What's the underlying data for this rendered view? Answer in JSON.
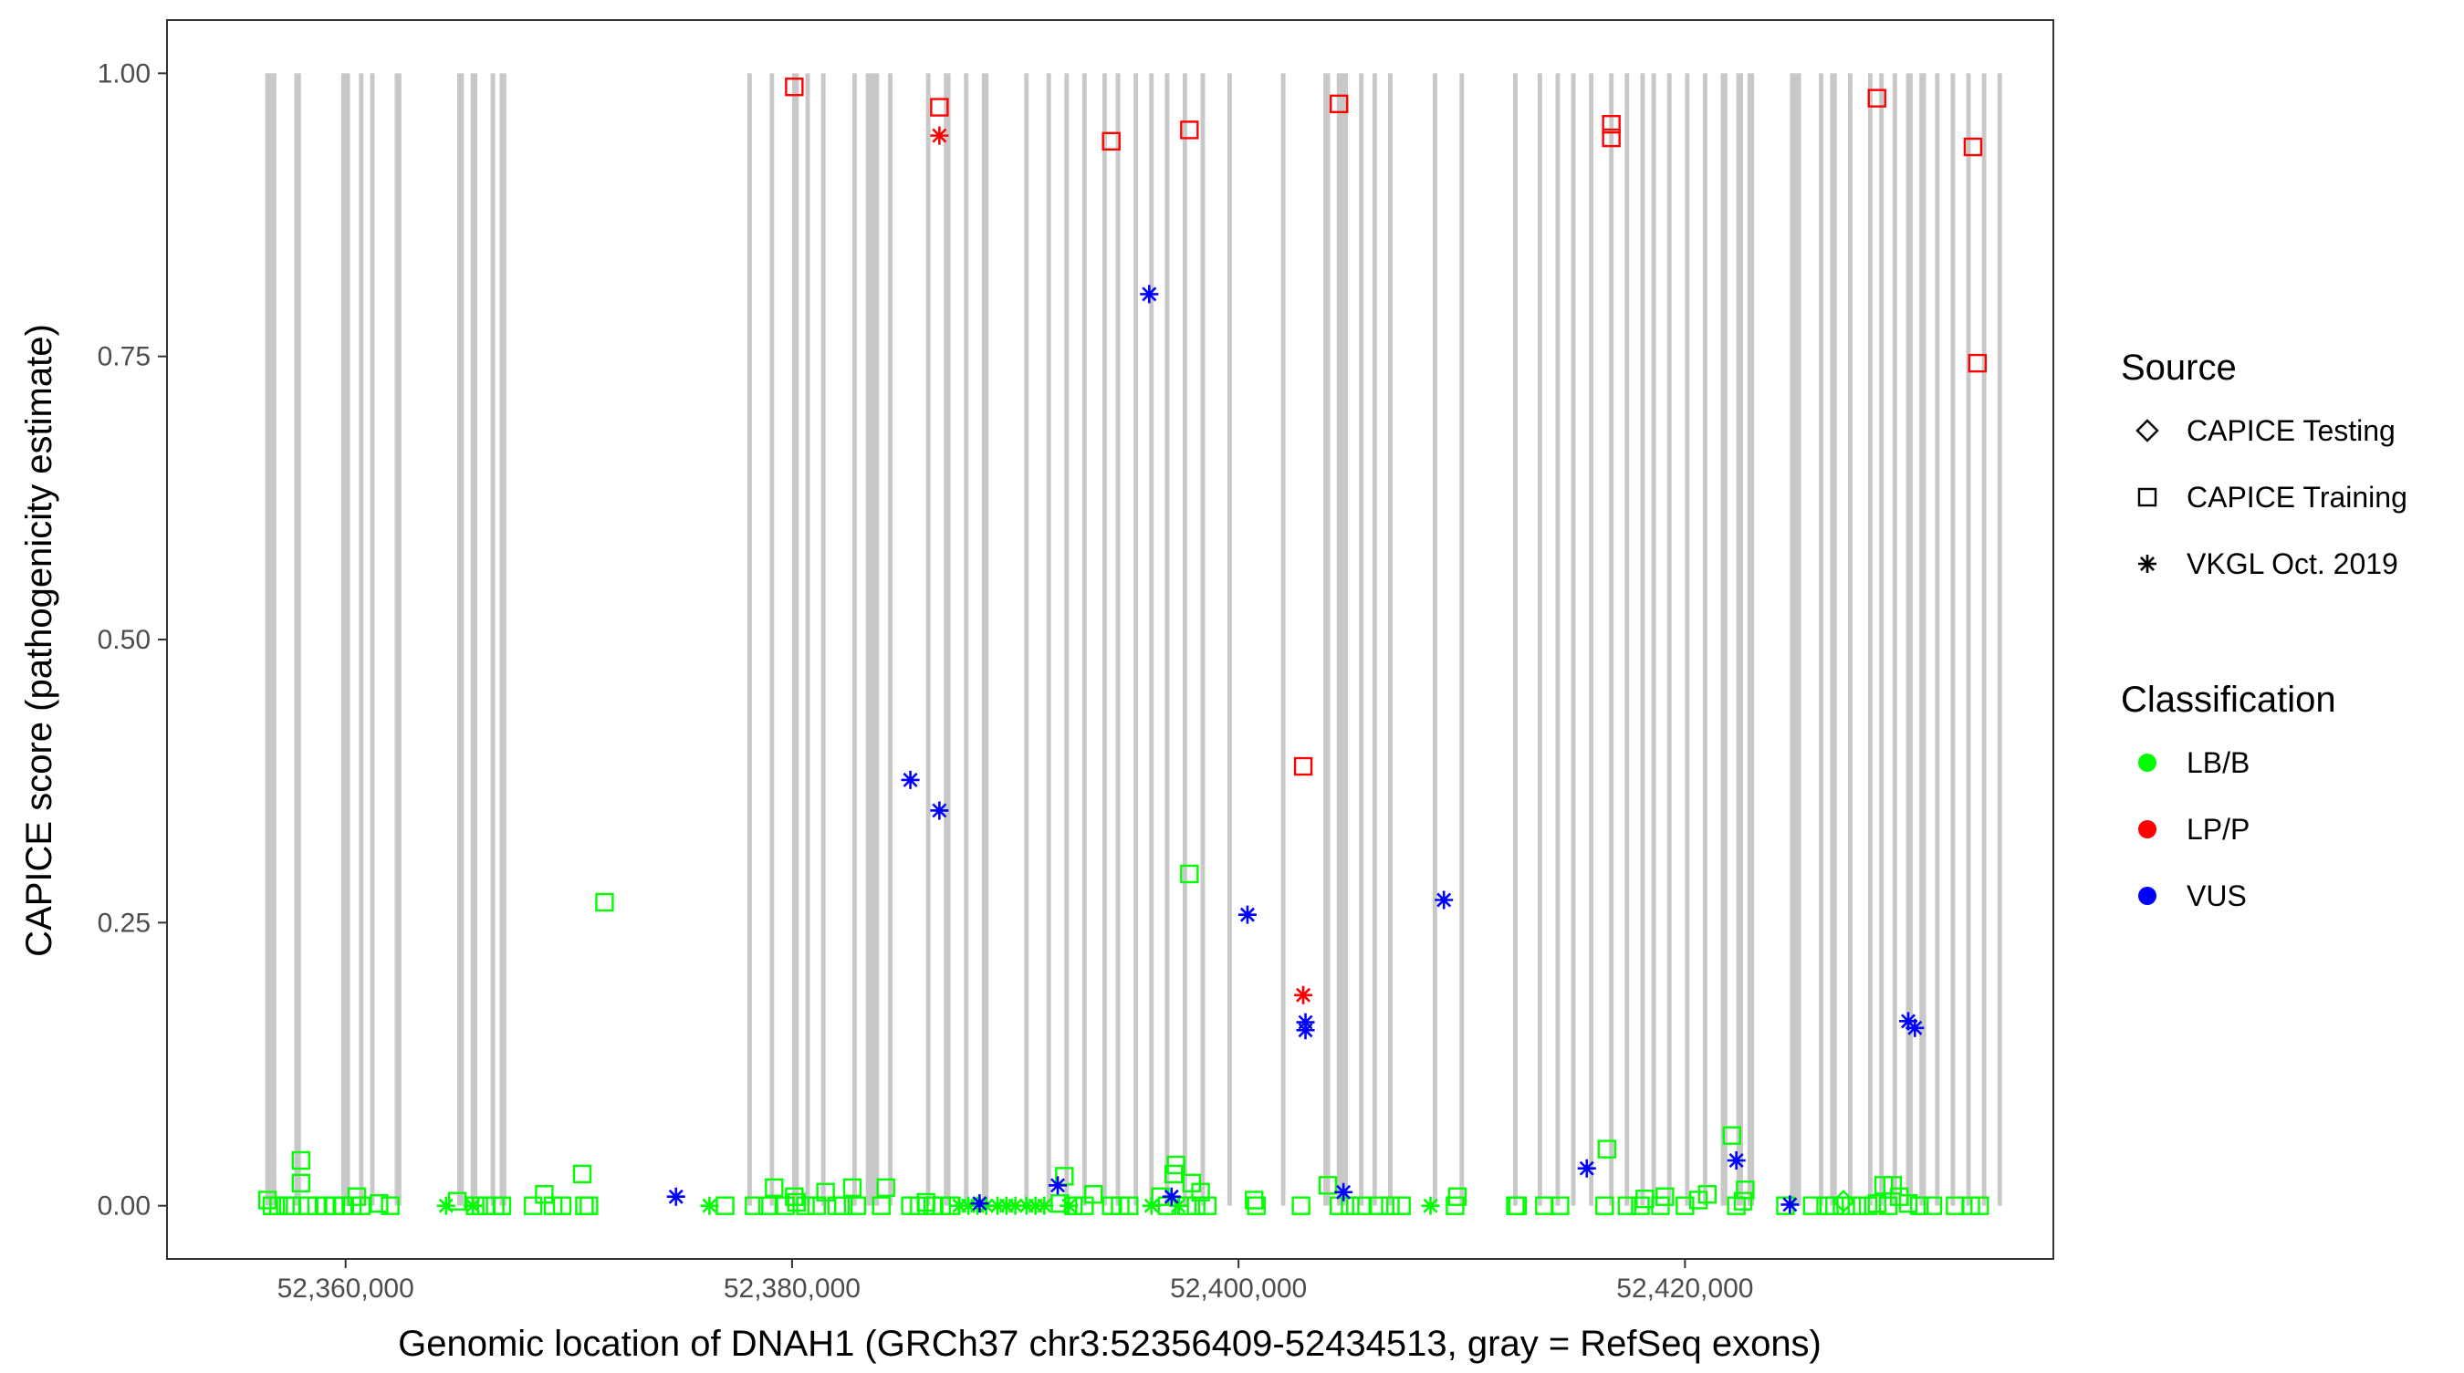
{
  "chart_data": {
    "type": "scatter",
    "xlabel": "Genomic location of DNAH1 (GRCh37 chr3:52356409-52434513, gray = RefSeq exons)",
    "ylabel": "CAPICE score (pathogenicity estimate)",
    "xlim": [
      52352000,
      52436500
    ],
    "ylim": [
      -0.047,
      1.047
    ],
    "x_ticks": [
      52360000,
      52380000,
      52400000,
      52420000
    ],
    "x_tick_labels": [
      "52,360,000",
      "52,380,000",
      "52,400,000",
      "52,420,000"
    ],
    "y_ticks": [
      0,
      0.25,
      0.5,
      0.75,
      1.0
    ],
    "y_tick_labels": [
      "0.00",
      "0.25",
      "0.50",
      "0.75",
      "1.00"
    ],
    "grid": false,
    "exon_color": "#c8c8c8",
    "exons": [
      [
        52356400,
        52356900
      ],
      [
        52357700,
        52358000
      ],
      [
        52359800,
        52360200
      ],
      [
        52360600,
        52360800
      ],
      [
        52361100,
        52361300
      ],
      [
        52362200,
        52362500
      ],
      [
        52365000,
        52365300
      ],
      [
        52365600,
        52365900
      ],
      [
        52366500,
        52366700
      ],
      [
        52366900,
        52367200
      ],
      [
        52378000,
        52378200
      ],
      [
        52379000,
        52379200
      ],
      [
        52380000,
        52380300
      ],
      [
        52380600,
        52380800
      ],
      [
        52381300,
        52381500
      ],
      [
        52382700,
        52382900
      ],
      [
        52383300,
        52383900
      ],
      [
        52384300,
        52384500
      ],
      [
        52386000,
        52386200
      ],
      [
        52386800,
        52387100
      ],
      [
        52387700,
        52387900
      ],
      [
        52388500,
        52388800
      ],
      [
        52390400,
        52390600
      ],
      [
        52391400,
        52391600
      ],
      [
        52392200,
        52392400
      ],
      [
        52393000,
        52393200
      ],
      [
        52393900,
        52394100
      ],
      [
        52394500,
        52394700
      ],
      [
        52395300,
        52395500
      ],
      [
        52396000,
        52396200
      ],
      [
        52396700,
        52396900
      ],
      [
        52397500,
        52397700
      ],
      [
        52398300,
        52398500
      ],
      [
        52399500,
        52399700
      ],
      [
        52401900,
        52402100
      ],
      [
        52403800,
        52404100
      ],
      [
        52404400,
        52404900
      ],
      [
        52405400,
        52405600
      ],
      [
        52406000,
        52406200
      ],
      [
        52406700,
        52406900
      ],
      [
        52408700,
        52408900
      ],
      [
        52409900,
        52410100
      ],
      [
        52412300,
        52412500
      ],
      [
        52413400,
        52413600
      ],
      [
        52414200,
        52414400
      ],
      [
        52414900,
        52415100
      ],
      [
        52415700,
        52415900
      ],
      [
        52416600,
        52416800
      ],
      [
        52417300,
        52417500
      ],
      [
        52418000,
        52418200
      ],
      [
        52418500,
        52418700
      ],
      [
        52419200,
        52419400
      ],
      [
        52420000,
        52420200
      ],
      [
        52420800,
        52421000
      ],
      [
        52421600,
        52421900
      ],
      [
        52422300,
        52422600
      ],
      [
        52422800,
        52423100
      ],
      [
        52424700,
        52425200
      ],
      [
        52426000,
        52426200
      ],
      [
        52426500,
        52426800
      ],
      [
        52427300,
        52427500
      ],
      [
        52428200,
        52428400
      ],
      [
        52428700,
        52428900
      ],
      [
        52429300,
        52429500
      ],
      [
        52429900,
        52430200
      ],
      [
        52430500,
        52430800
      ],
      [
        52431200,
        52431400
      ],
      [
        52431900,
        52432100
      ],
      [
        52432600,
        52432800
      ],
      [
        52433300,
        52433500
      ],
      [
        52434000,
        52434200
      ]
    ],
    "colors": {
      "LB/B": "#00ff00",
      "LP/P": "#ff0000",
      "VUS": "#0000ff"
    },
    "legend": {
      "source_title": "Source",
      "source_items": [
        {
          "label": "CAPICE Testing",
          "shape": "diamond"
        },
        {
          "label": "CAPICE Training",
          "shape": "square"
        },
        {
          "label": "VKGL Oct. 2019",
          "shape": "asterisk"
        }
      ],
      "class_title": "Classification",
      "class_items": [
        {
          "label": "LB/B",
          "key": "LB/B"
        },
        {
          "label": "LP/P",
          "key": "LP/P"
        },
        {
          "label": "VUS",
          "key": "VUS"
        }
      ]
    },
    "series": [
      {
        "name": "LB/B",
        "shape": "square",
        "points": [
          [
            52356500,
            0.005
          ],
          [
            52356700,
            0.0
          ],
          [
            52357000,
            0.0
          ],
          [
            52357300,
            0.0
          ],
          [
            52357600,
            0.0
          ],
          [
            52358000,
            0.04
          ],
          [
            52358000,
            0.02
          ],
          [
            52358300,
            0.0
          ],
          [
            52358700,
            0.0
          ],
          [
            52359100,
            0.0
          ],
          [
            52359500,
            0.0
          ],
          [
            52359900,
            0.0
          ],
          [
            52360300,
            0.0
          ],
          [
            52360500,
            0.008
          ],
          [
            52360700,
            0.0
          ],
          [
            52361500,
            0.002
          ],
          [
            52362000,
            0.0
          ],
          [
            52365000,
            0.004
          ],
          [
            52365800,
            0.0
          ],
          [
            52366300,
            0.0
          ],
          [
            52366700,
            0.0
          ],
          [
            52367000,
            0.0
          ],
          [
            52368400,
            0.0
          ],
          [
            52368900,
            0.01
          ],
          [
            52369300,
            0.0
          ],
          [
            52369700,
            0.0
          ],
          [
            52370600,
            0.028
          ],
          [
            52370700,
            0.0
          ],
          [
            52370900,
            0.0
          ],
          [
            52371600,
            0.268
          ],
          [
            52377000,
            0.0
          ],
          [
            52378300,
            0.0
          ],
          [
            52378900,
            0.0
          ],
          [
            52379200,
            0.016
          ],
          [
            52379700,
            0.0
          ],
          [
            52380100,
            0.008
          ],
          [
            52380200,
            0.003
          ],
          [
            52380600,
            0.0
          ],
          [
            52381100,
            0.0
          ],
          [
            52381500,
            0.012
          ],
          [
            52382000,
            0.0
          ],
          [
            52382300,
            0.0
          ],
          [
            52382700,
            0.016
          ],
          [
            52382900,
            0.0
          ],
          [
            52384000,
            0.0
          ],
          [
            52384200,
            0.016
          ],
          [
            52385300,
            0.0
          ],
          [
            52385700,
            0.0
          ],
          [
            52386000,
            0.003
          ],
          [
            52386300,
            0.0
          ],
          [
            52386700,
            0.0
          ],
          [
            52387100,
            0.0
          ],
          [
            52392000,
            0.002
          ],
          [
            52392200,
            0.026
          ],
          [
            52392600,
            0.0
          ],
          [
            52393100,
            0.0
          ],
          [
            52393500,
            0.01
          ],
          [
            52394300,
            0.0
          ],
          [
            52394700,
            0.0
          ],
          [
            52395100,
            0.0
          ],
          [
            52396500,
            0.008
          ],
          [
            52396800,
            0.0
          ],
          [
            52397100,
            0.028
          ],
          [
            52397200,
            0.036
          ],
          [
            52397700,
            0.0
          ],
          [
            52397800,
            0.293
          ],
          [
            52397900,
            0.02
          ],
          [
            52398100,
            0.0
          ],
          [
            52398300,
            0.012
          ],
          [
            52398600,
            0.0
          ],
          [
            52400700,
            0.005
          ],
          [
            52400800,
            0.0
          ],
          [
            52402800,
            0.0
          ],
          [
            52404000,
            0.018
          ],
          [
            52404500,
            0.0
          ],
          [
            52405000,
            0.0
          ],
          [
            52405500,
            0.0
          ],
          [
            52406300,
            0.0
          ],
          [
            52406800,
            0.0
          ],
          [
            52407300,
            0.0
          ],
          [
            52409700,
            0.0
          ],
          [
            52409800,
            0.008
          ],
          [
            52412400,
            0.0
          ],
          [
            52412500,
            0.0
          ],
          [
            52413700,
            0.0
          ],
          [
            52414400,
            0.0
          ],
          [
            52416400,
            0.0
          ],
          [
            52416500,
            0.05
          ],
          [
            52417400,
            0.0
          ],
          [
            52418000,
            0.0
          ],
          [
            52418200,
            0.006
          ],
          [
            52418900,
            0.0
          ],
          [
            52419100,
            0.008
          ],
          [
            52420000,
            0.0
          ],
          [
            52420600,
            0.005
          ],
          [
            52421000,
            0.01
          ],
          [
            52422100,
            0.062
          ],
          [
            52422300,
            0.0
          ],
          [
            52422600,
            0.004
          ],
          [
            52422700,
            0.014
          ],
          [
            52424500,
            0.0
          ],
          [
            52425700,
            0.0
          ],
          [
            52426300,
            0.0
          ],
          [
            52426700,
            0.0
          ],
          [
            52427200,
            0.0
          ],
          [
            52427700,
            0.0
          ],
          [
            52428200,
            0.0
          ],
          [
            52428600,
            0.002
          ],
          [
            52428900,
            0.018
          ],
          [
            52429100,
            0.0
          ],
          [
            52429300,
            0.018
          ],
          [
            52429600,
            0.008
          ],
          [
            52430000,
            0.002
          ],
          [
            52430500,
            0.0
          ],
          [
            52431100,
            0.0
          ],
          [
            52432100,
            0.0
          ],
          [
            52432800,
            0.0
          ],
          [
            52433200,
            0.0
          ]
        ]
      },
      {
        "name": "LB/B",
        "shape": "asterisk",
        "points": [
          [
            52364500,
            0.0
          ],
          [
            52365700,
            0.0
          ],
          [
            52376300,
            0.0
          ],
          [
            52387500,
            0.0
          ],
          [
            52387900,
            0.0
          ],
          [
            52388300,
            0.0
          ],
          [
            52388700,
            0.0
          ],
          [
            52389200,
            0.0
          ],
          [
            52389600,
            0.0
          ],
          [
            52390000,
            0.0
          ],
          [
            52390500,
            0.0
          ],
          [
            52390900,
            0.0
          ],
          [
            52391300,
            0.0
          ],
          [
            52392400,
            0.0
          ],
          [
            52396100,
            0.0
          ],
          [
            52397300,
            0.0
          ],
          [
            52408600,
            0.0
          ]
        ]
      },
      {
        "name": "LB/B",
        "shape": "diamond",
        "points": [
          [
            52427100,
            0.004
          ]
        ]
      },
      {
        "name": "LP/P",
        "shape": "square",
        "points": [
          [
            52380100,
            0.988
          ],
          [
            52386600,
            0.97
          ],
          [
            52394300,
            0.94
          ],
          [
            52397800,
            0.95
          ],
          [
            52402900,
            0.388
          ],
          [
            52404500,
            0.973
          ],
          [
            52416700,
            0.955
          ],
          [
            52416700,
            0.943
          ],
          [
            52428600,
            0.978
          ],
          [
            52432900,
            0.935
          ],
          [
            52433100,
            0.744
          ]
        ]
      },
      {
        "name": "LP/P",
        "shape": "asterisk",
        "points": [
          [
            52386600,
            0.945
          ],
          [
            52402900,
            0.186
          ]
        ]
      },
      {
        "name": "VUS",
        "shape": "asterisk",
        "points": [
          [
            52374800,
            0.008
          ],
          [
            52385300,
            0.376
          ],
          [
            52386600,
            0.349
          ],
          [
            52388400,
            0.002
          ],
          [
            52391900,
            0.018
          ],
          [
            52396000,
            0.805
          ],
          [
            52397000,
            0.008
          ],
          [
            52400400,
            0.257
          ],
          [
            52403000,
            0.162
          ],
          [
            52403000,
            0.155
          ],
          [
            52404700,
            0.012
          ],
          [
            52409200,
            0.27
          ],
          [
            52415600,
            0.033
          ],
          [
            52422300,
            0.04
          ],
          [
            52424700,
            0.001
          ],
          [
            52430000,
            0.163
          ],
          [
            52430300,
            0.157
          ]
        ]
      }
    ]
  }
}
